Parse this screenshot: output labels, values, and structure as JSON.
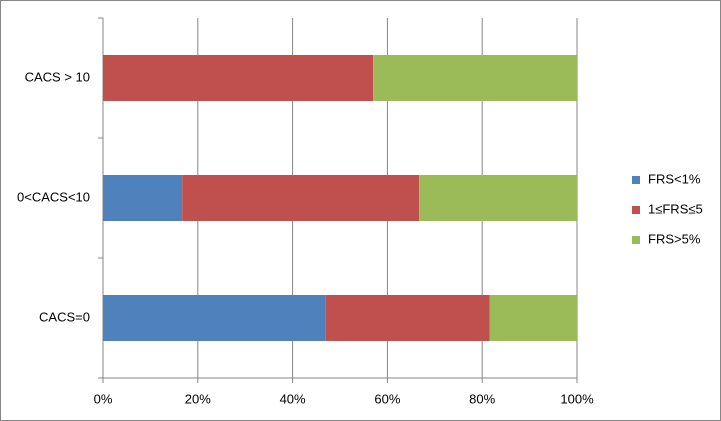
{
  "chart_data": {
    "type": "stacked_barh",
    "categories": [
      "CACS=0",
      "0<CACS<10",
      "CACS > 10"
    ],
    "series": [
      {
        "name": "FRS<1%",
        "color": "#4f81bd",
        "values": [
          47,
          16.7,
          0
        ]
      },
      {
        "name": "1≤FRS≤5",
        "color": "#c0504d",
        "values": [
          34.6,
          50,
          57
        ]
      },
      {
        "name": "FRS>5%",
        "color": "#9bbb59",
        "values": [
          18.4,
          33.3,
          43
        ]
      }
    ],
    "xlim": [
      0,
      100
    ],
    "xticks": [
      {
        "value": 0,
        "label": "0%"
      },
      {
        "value": 20,
        "label": "20%"
      },
      {
        "value": 40,
        "label": "40%"
      },
      {
        "value": 60,
        "label": "60%"
      },
      {
        "value": 80,
        "label": "80%"
      },
      {
        "value": 100,
        "label": "100%"
      }
    ],
    "grid": true,
    "legend": "right"
  }
}
